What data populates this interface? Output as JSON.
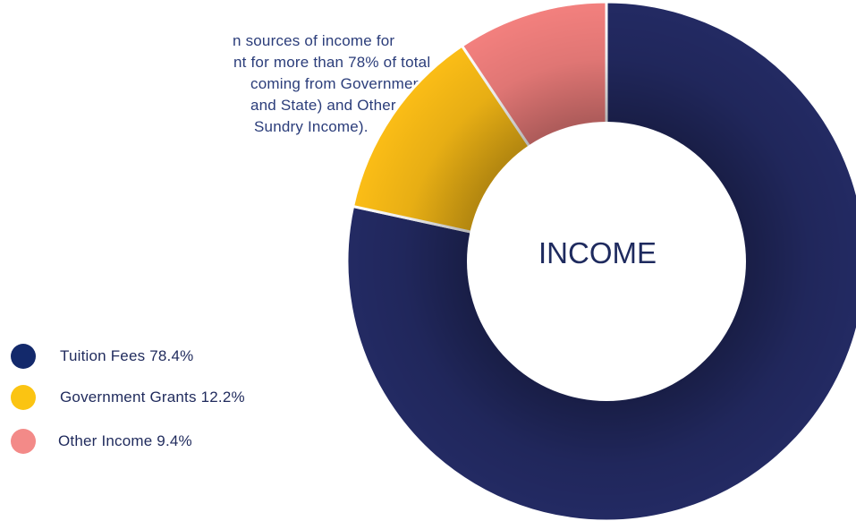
{
  "intro": {
    "lines": [
      "n sources of income for",
      "nt for more than 78% of total",
      "coming from Government",
      "and State) and Other",
      "Sundry Income)."
    ]
  },
  "chart_data": {
    "type": "pie",
    "title": "INCOME",
    "series": [
      {
        "name": "Tuition Fees",
        "value": 78.4,
        "label": "Tuition Fees 78.4%",
        "color": "#232a63"
      },
      {
        "name": "Government Grants",
        "value": 12.2,
        "label": "Government Grants 12.2%",
        "color": "#fbbd16"
      },
      {
        "name": "Other Income",
        "value": 9.4,
        "label": "Other Income 9.4%",
        "color": "#f3807e"
      }
    ],
    "legend_colors": [
      "#13296b",
      "#fbc412",
      "#f38a88"
    ],
    "legend_position": "left"
  }
}
